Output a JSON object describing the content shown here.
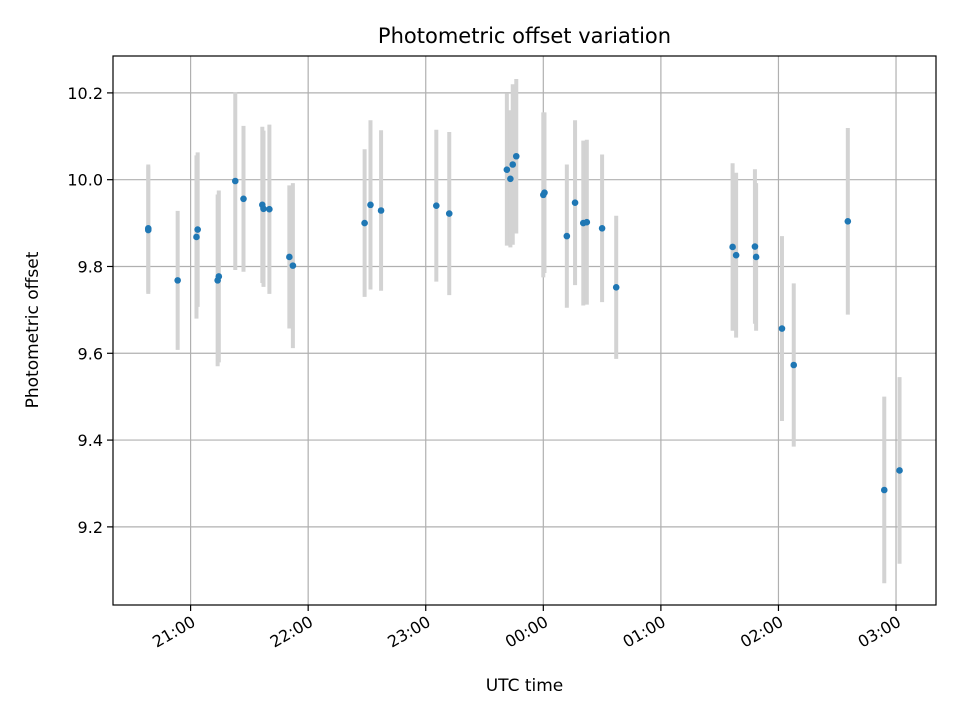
{
  "chart_data": {
    "type": "scatter",
    "title": "Photometric offset variation",
    "xlabel": "UTC time",
    "ylabel": "Photometric offset",
    "grid": true,
    "x_ticks": [
      "21:00",
      "22:00",
      "23:00",
      "00:00",
      "01:00",
      "02:00",
      "03:00"
    ],
    "x_tick_hours": [
      21,
      22,
      23,
      24,
      25,
      26,
      27
    ],
    "xlim_hours": [
      20.34,
      27.34
    ],
    "y_ticks": [
      "9.2",
      "9.4",
      "9.6",
      "9.8",
      "10.0",
      "10.2"
    ],
    "y_tick_values": [
      9.2,
      9.4,
      9.6,
      9.8,
      10.0,
      10.2
    ],
    "ylim": [
      9.02,
      10.285
    ],
    "point_color": "#1f77b4",
    "errorbar_color": "#d3d3d3",
    "series": [
      {
        "x_hours": [
          20.64,
          20.64,
          20.89,
          21.05,
          21.06,
          21.23,
          21.24,
          21.38,
          21.45,
          21.61,
          21.62,
          21.67,
          21.84,
          21.87,
          22.48,
          22.53,
          22.62,
          23.09,
          23.2,
          23.69,
          23.72,
          23.74,
          23.77,
          24.0,
          24.01,
          24.2,
          24.27,
          24.34,
          24.37,
          24.5,
          24.62,
          25.61,
          25.64,
          25.8,
          25.81,
          26.03,
          26.13,
          26.59,
          26.9,
          27.03
        ],
        "y": [
          9.888,
          9.884,
          9.768,
          9.868,
          9.885,
          9.768,
          9.777,
          9.997,
          9.956,
          9.942,
          9.933,
          9.932,
          9.822,
          9.802,
          9.9,
          9.942,
          9.929,
          9.94,
          9.922,
          10.023,
          10.002,
          10.035,
          10.054,
          9.965,
          9.97,
          9.87,
          9.947,
          9.9,
          9.902,
          9.888,
          9.752,
          9.845,
          9.826,
          9.846,
          9.822,
          9.657,
          9.573,
          9.904,
          9.285,
          9.33
        ],
        "y_err": [
          0.147,
          0.147,
          0.16,
          0.188,
          0.178,
          0.198,
          0.198,
          0.205,
          0.168,
          0.18,
          0.18,
          0.195,
          0.165,
          0.19,
          0.17,
          0.195,
          0.185,
          0.175,
          0.188,
          0.175,
          0.158,
          0.185,
          0.178,
          0.19,
          0.185,
          0.165,
          0.19,
          0.19,
          0.19,
          0.17,
          0.165,
          0.193,
          0.19,
          0.178,
          0.17,
          0.213,
          0.188,
          0.215,
          0.215,
          0.215
        ]
      }
    ]
  }
}
